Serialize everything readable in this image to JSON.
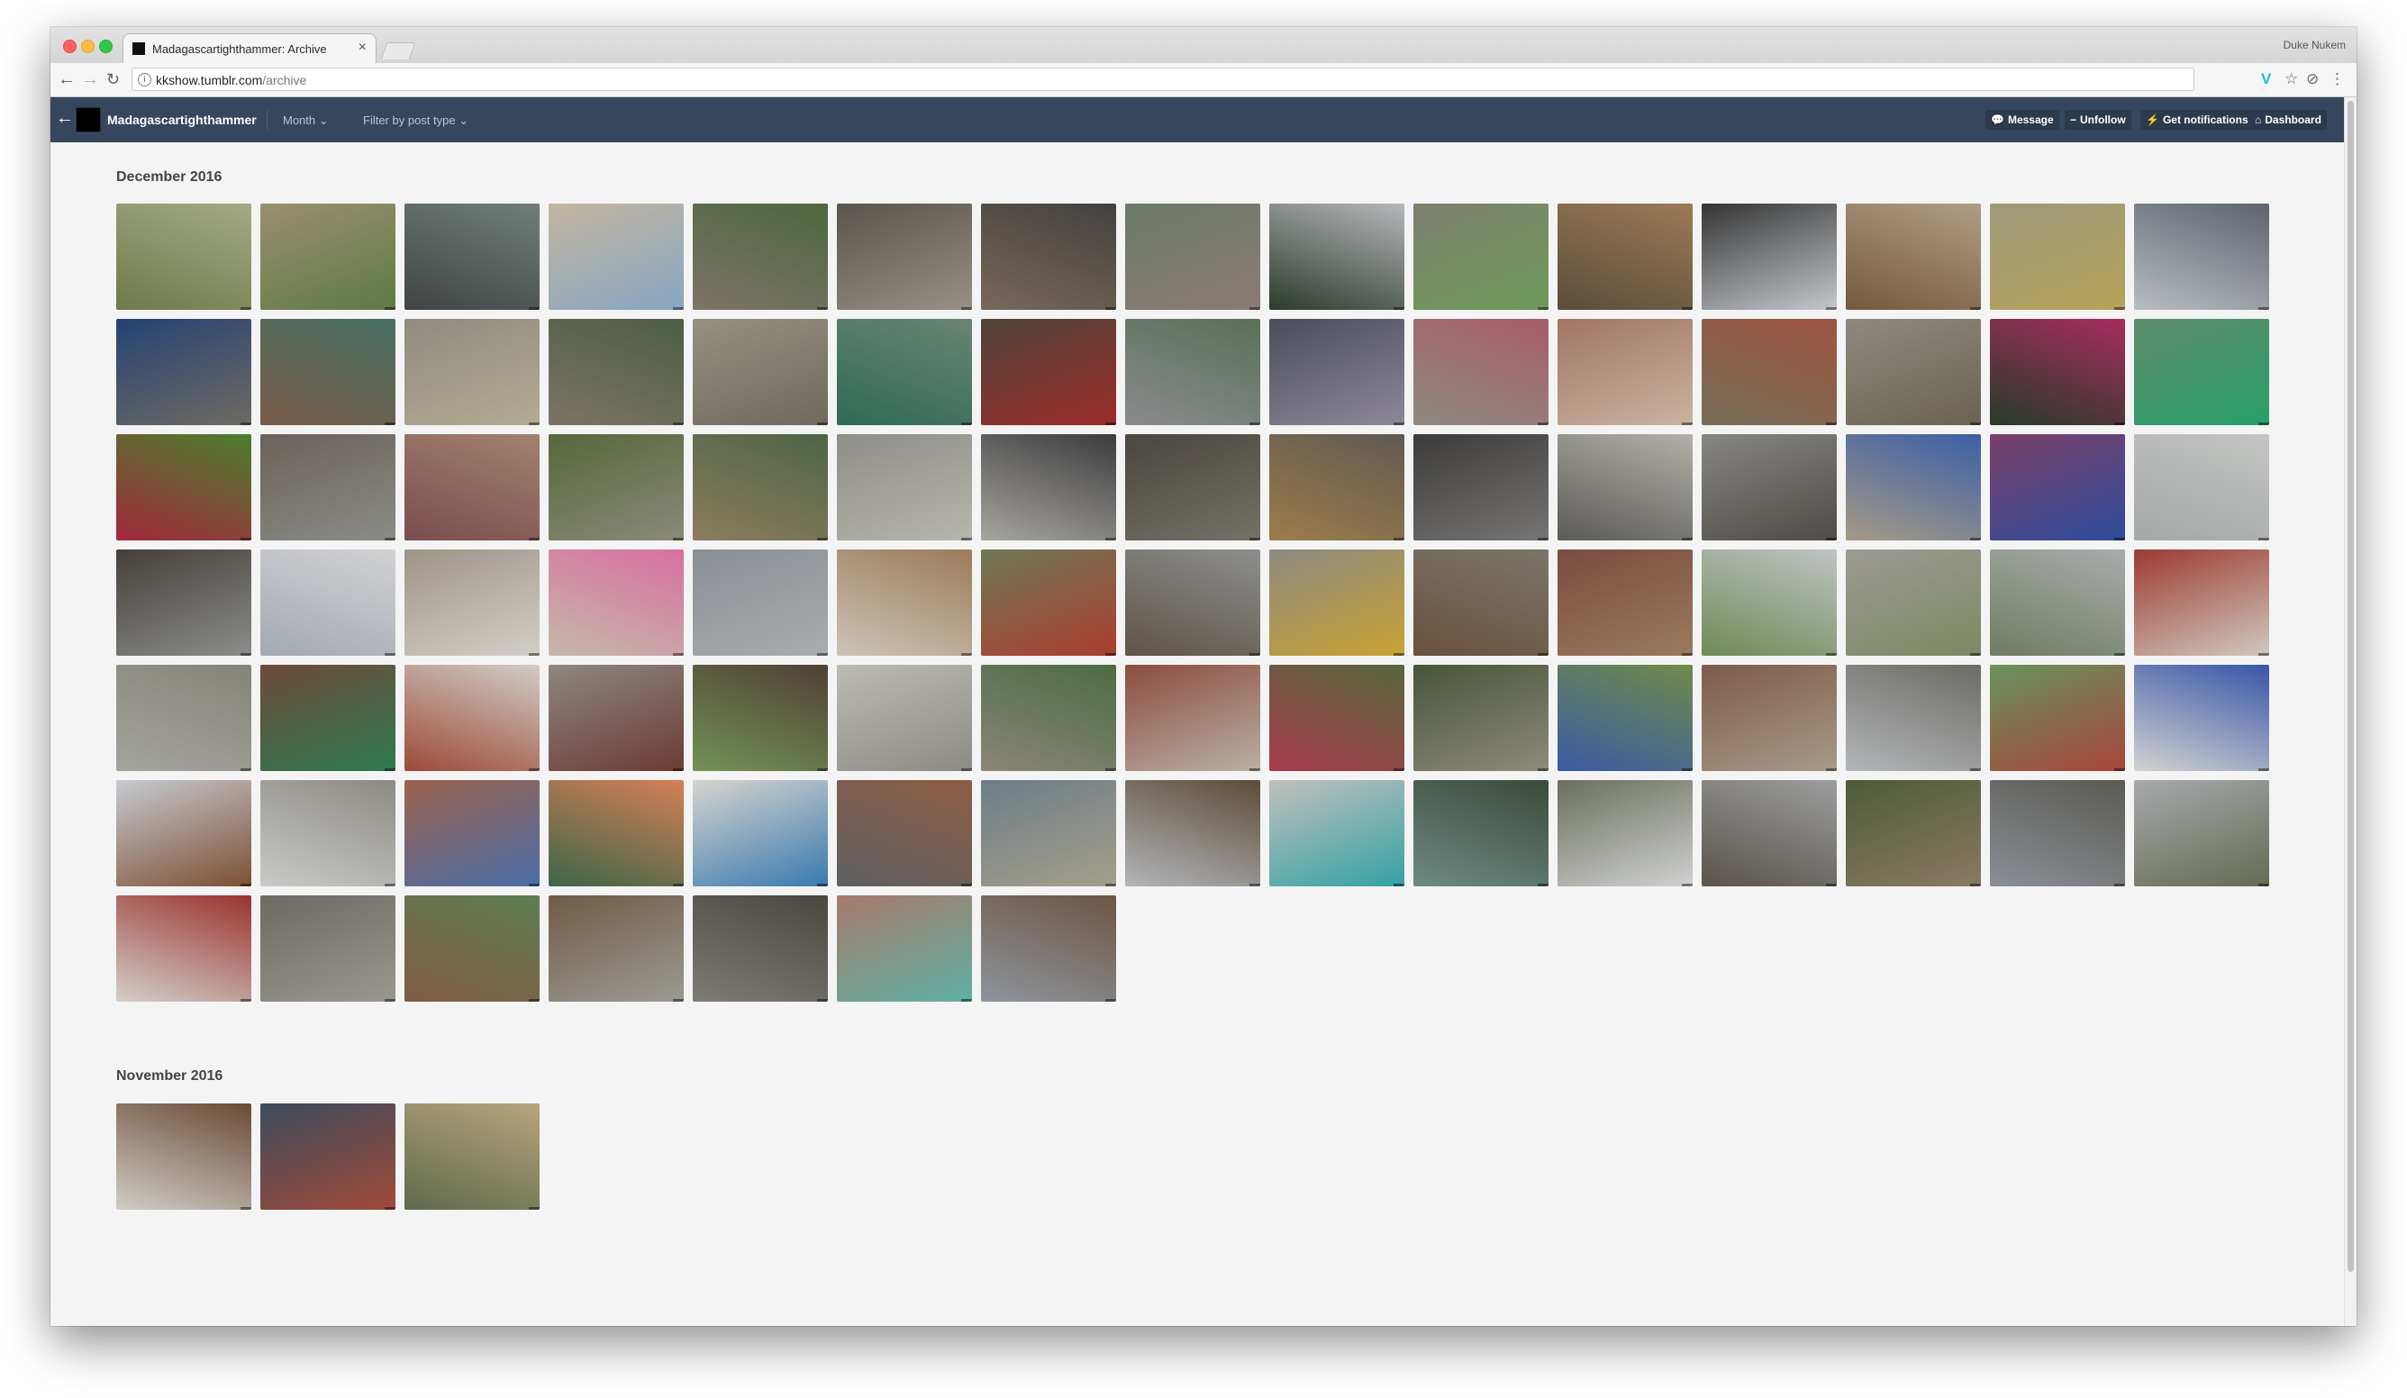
{
  "browser": {
    "tab_title": "Madagascartighthammer: Archive",
    "tab_close": "×",
    "profile_name": "Duke Nukem",
    "url_domain": "kkshow.tumblr.com",
    "url_path": "/archive",
    "back_glyph": "←",
    "forward_glyph": "→",
    "reload_glyph": "↻",
    "info_glyph": "i",
    "icons": [
      "vimeo-extension-icon",
      "star-icon",
      "extension-icon",
      "menu-icon"
    ]
  },
  "header": {
    "back_glyph": "←",
    "blog_name": "Madagascartighthammer",
    "month_menu": "Month",
    "filter_menu": "Filter by post type",
    "chevron": "⌄",
    "buttons": [
      {
        "label": "Message",
        "icon": "💬"
      },
      {
        "label": "Unfollow",
        "icon": "−"
      },
      {
        "label": "Get notifications",
        "icon": "⚡"
      },
      {
        "label": "Dashboard",
        "icon": "⌂"
      }
    ]
  },
  "archive": {
    "sections": [
      {
        "month": "December 2016",
        "thumbs": [
          [
            "#6f7a4a",
            "#a3aa86"
          ],
          [
            "#9a8f70",
            "#5f7a45"
          ],
          [
            "#404444",
            "#727e7a"
          ],
          [
            "#c2b5a0",
            "#88a6c2"
          ],
          [
            "#7d7466",
            "#4e6740"
          ],
          [
            "#59544d",
            "#979086"
          ],
          [
            "#77685a",
            "#43413f"
          ],
          [
            "#6c7a6a",
            "#8a7a76"
          ],
          [
            "#2e3a2c",
            "#b5b8bb"
          ],
          [
            "#7e806f",
            "#6d9a58"
          ],
          [
            "#5a4d3c",
            "#9c7a55"
          ],
          [
            "#343434",
            "#c4c8cc"
          ],
          [
            "#75593d",
            "#b09d86"
          ],
          [
            "#9d9a7c",
            "#b5a257"
          ],
          [
            "#b8bcc2",
            "#5d646c"
          ],
          [
            "#254274",
            "#6f6a62"
          ],
          [
            "#7a5c48",
            "#476f63"
          ],
          [
            "#8f8b7e",
            "#b4ab94"
          ],
          [
            "#7c7466",
            "#4d5d44"
          ],
          [
            "#969080",
            "#6e6a5c"
          ],
          [
            "#2f6a55",
            "#6a8474"
          ],
          [
            "#4d4438",
            "#9c2a2a"
          ],
          [
            "#8a8b8c",
            "#5a6f5a"
          ],
          [
            "#4a4d59",
            "#8e8899"
          ],
          [
            "#8e8a82",
            "#a85b6a"
          ],
          [
            "#a17564",
            "#c9b4a0"
          ],
          [
            "#756e58",
            "#9e5440"
          ],
          [
            "#8d8a7e",
            "#6b6350"
          ],
          [
            "#263b2a",
            "#a72c5d"
          ],
          [
            "#5d8a6a",
            "#28a06a"
          ],
          [
            "#a2283c",
            "#4b7f2e"
          ],
          [
            "#6a625b",
            "#8b8c86"
          ],
          [
            "#7a4d4d",
            "#a28270"
          ],
          [
            "#56683c",
            "#8a8978"
          ],
          [
            "#8b7d5e",
            "#4f6447"
          ],
          [
            "#8e8d88",
            "#b7b6ad"
          ],
          [
            "#a7a59e",
            "#3c3c3e"
          ],
          [
            "#4a4640",
            "#747166"
          ],
          [
            "#9d7c4a",
            "#605a52"
          ],
          [
            "#3c3b3a",
            "#767574"
          ],
          [
            "#5b5a57",
            "#b2b0a8"
          ],
          [
            "#878683",
            "#4f4b46"
          ],
          [
            "#a59a86",
            "#3b5fa6"
          ],
          [
            "#7a4068",
            "#2e4c9c"
          ],
          [
            "#a3a7a6",
            "#c3c5c2"
          ],
          [
            "#453f3a",
            "#8b8d8a"
          ],
          [
            "#a3a9b0",
            "#d1d2d4"
          ],
          [
            "#9e9488",
            "#d2cfc8"
          ],
          [
            "#c5b9aa",
            "#d86fa0"
          ],
          [
            "#8a8f94",
            "#a9adaf"
          ],
          [
            "#cbc4b6",
            "#9b7b5a"
          ],
          [
            "#6e7856",
            "#ab3e2e"
          ],
          [
            "#5e544a",
            "#8d8e8c"
          ],
          [
            "#8c8a80",
            "#c9a233"
          ],
          [
            "#6a513d",
            "#7a7669"
          ],
          [
            "#7a4c3e",
            "#9b7a60"
          ],
          [
            "#6f8a56",
            "#c0c3c4"
          ],
          [
            "#9c9a92",
            "#7d8a63"
          ],
          [
            "#6f7d62",
            "#a9acac"
          ],
          [
            "#9c3a32",
            "#d0c8bd"
          ],
          [
            "#a4a49e",
            "#85847a"
          ],
          [
            "#6d4a3a",
            "#2e7a4e"
          ],
          [
            "#9d4a38",
            "#d0cdc6"
          ],
          [
            "#8c8782",
            "#6d3b34"
          ],
          [
            "#739256",
            "#4f4035"
          ],
          [
            "#bcbab4",
            "#8c8b86"
          ],
          [
            "#8b8576",
            "#4c6c44"
          ],
          [
            "#8c4d40",
            "#b8b0a4"
          ],
          [
            "#a83b4c",
            "#55663c"
          ],
          [
            "#48553a",
            "#8e8a7a"
          ],
          [
            "#3b5aa4",
            "#6f8b4a"
          ],
          [
            "#7d5b4a",
            "#a89a88"
          ],
          [
            "#b3b6b9",
            "#6c6b64"
          ],
          [
            "#67935e",
            "#a8453a"
          ],
          [
            "#d2d2d0",
            "#3856a8"
          ],
          [
            "#c6cad1",
            "#7d5033"
          ],
          [
            "#c9c9c6",
            "#8c8a84"
          ],
          [
            "#9a624c",
            "#4c6da8"
          ],
          [
            "#3c6648",
            "#d57f56"
          ],
          [
            "#d6d4cd",
            "#3a7ab0"
          ],
          [
            "#5e6063",
            "#8d5d44"
          ],
          [
            "#6e7d87",
            "#a49f8b"
          ],
          [
            "#b3b5b9",
            "#5b4c38"
          ],
          [
            "#c1c0bc",
            "#34a2a4"
          ],
          [
            "#6e8a84",
            "#3a4a3a"
          ],
          [
            "#6a6f5e",
            "#d0d1d0"
          ],
          [
            "#59534b",
            "#9c9d9d"
          ],
          [
            "#4d5b37",
            "#8a7a64"
          ],
          [
            "#8a8f96",
            "#5a5a52"
          ],
          [
            "#a7a9ac",
            "#646b53"
          ],
          [
            "#d2cfc8",
            "#9b3330"
          ],
          [
            "#6d6a64",
            "#9a9790"
          ],
          [
            "#815b45",
            "#5e7d52"
          ],
          [
            "#6f5c45",
            "#9b9a94"
          ],
          [
            "#7e7b76",
            "#4a4640"
          ],
          [
            "#a77a6a",
            "#5fb0a4"
          ],
          [
            "#8e949c",
            "#6b5644"
          ]
        ]
      },
      {
        "month": "November 2016",
        "thumbs": [
          [
            "#cfcdc6",
            "#6a4b35"
          ],
          [
            "#3c4b5c",
            "#a14a3a"
          ],
          [
            "#5f6a4c",
            "#b6a57d"
          ]
        ]
      }
    ]
  }
}
